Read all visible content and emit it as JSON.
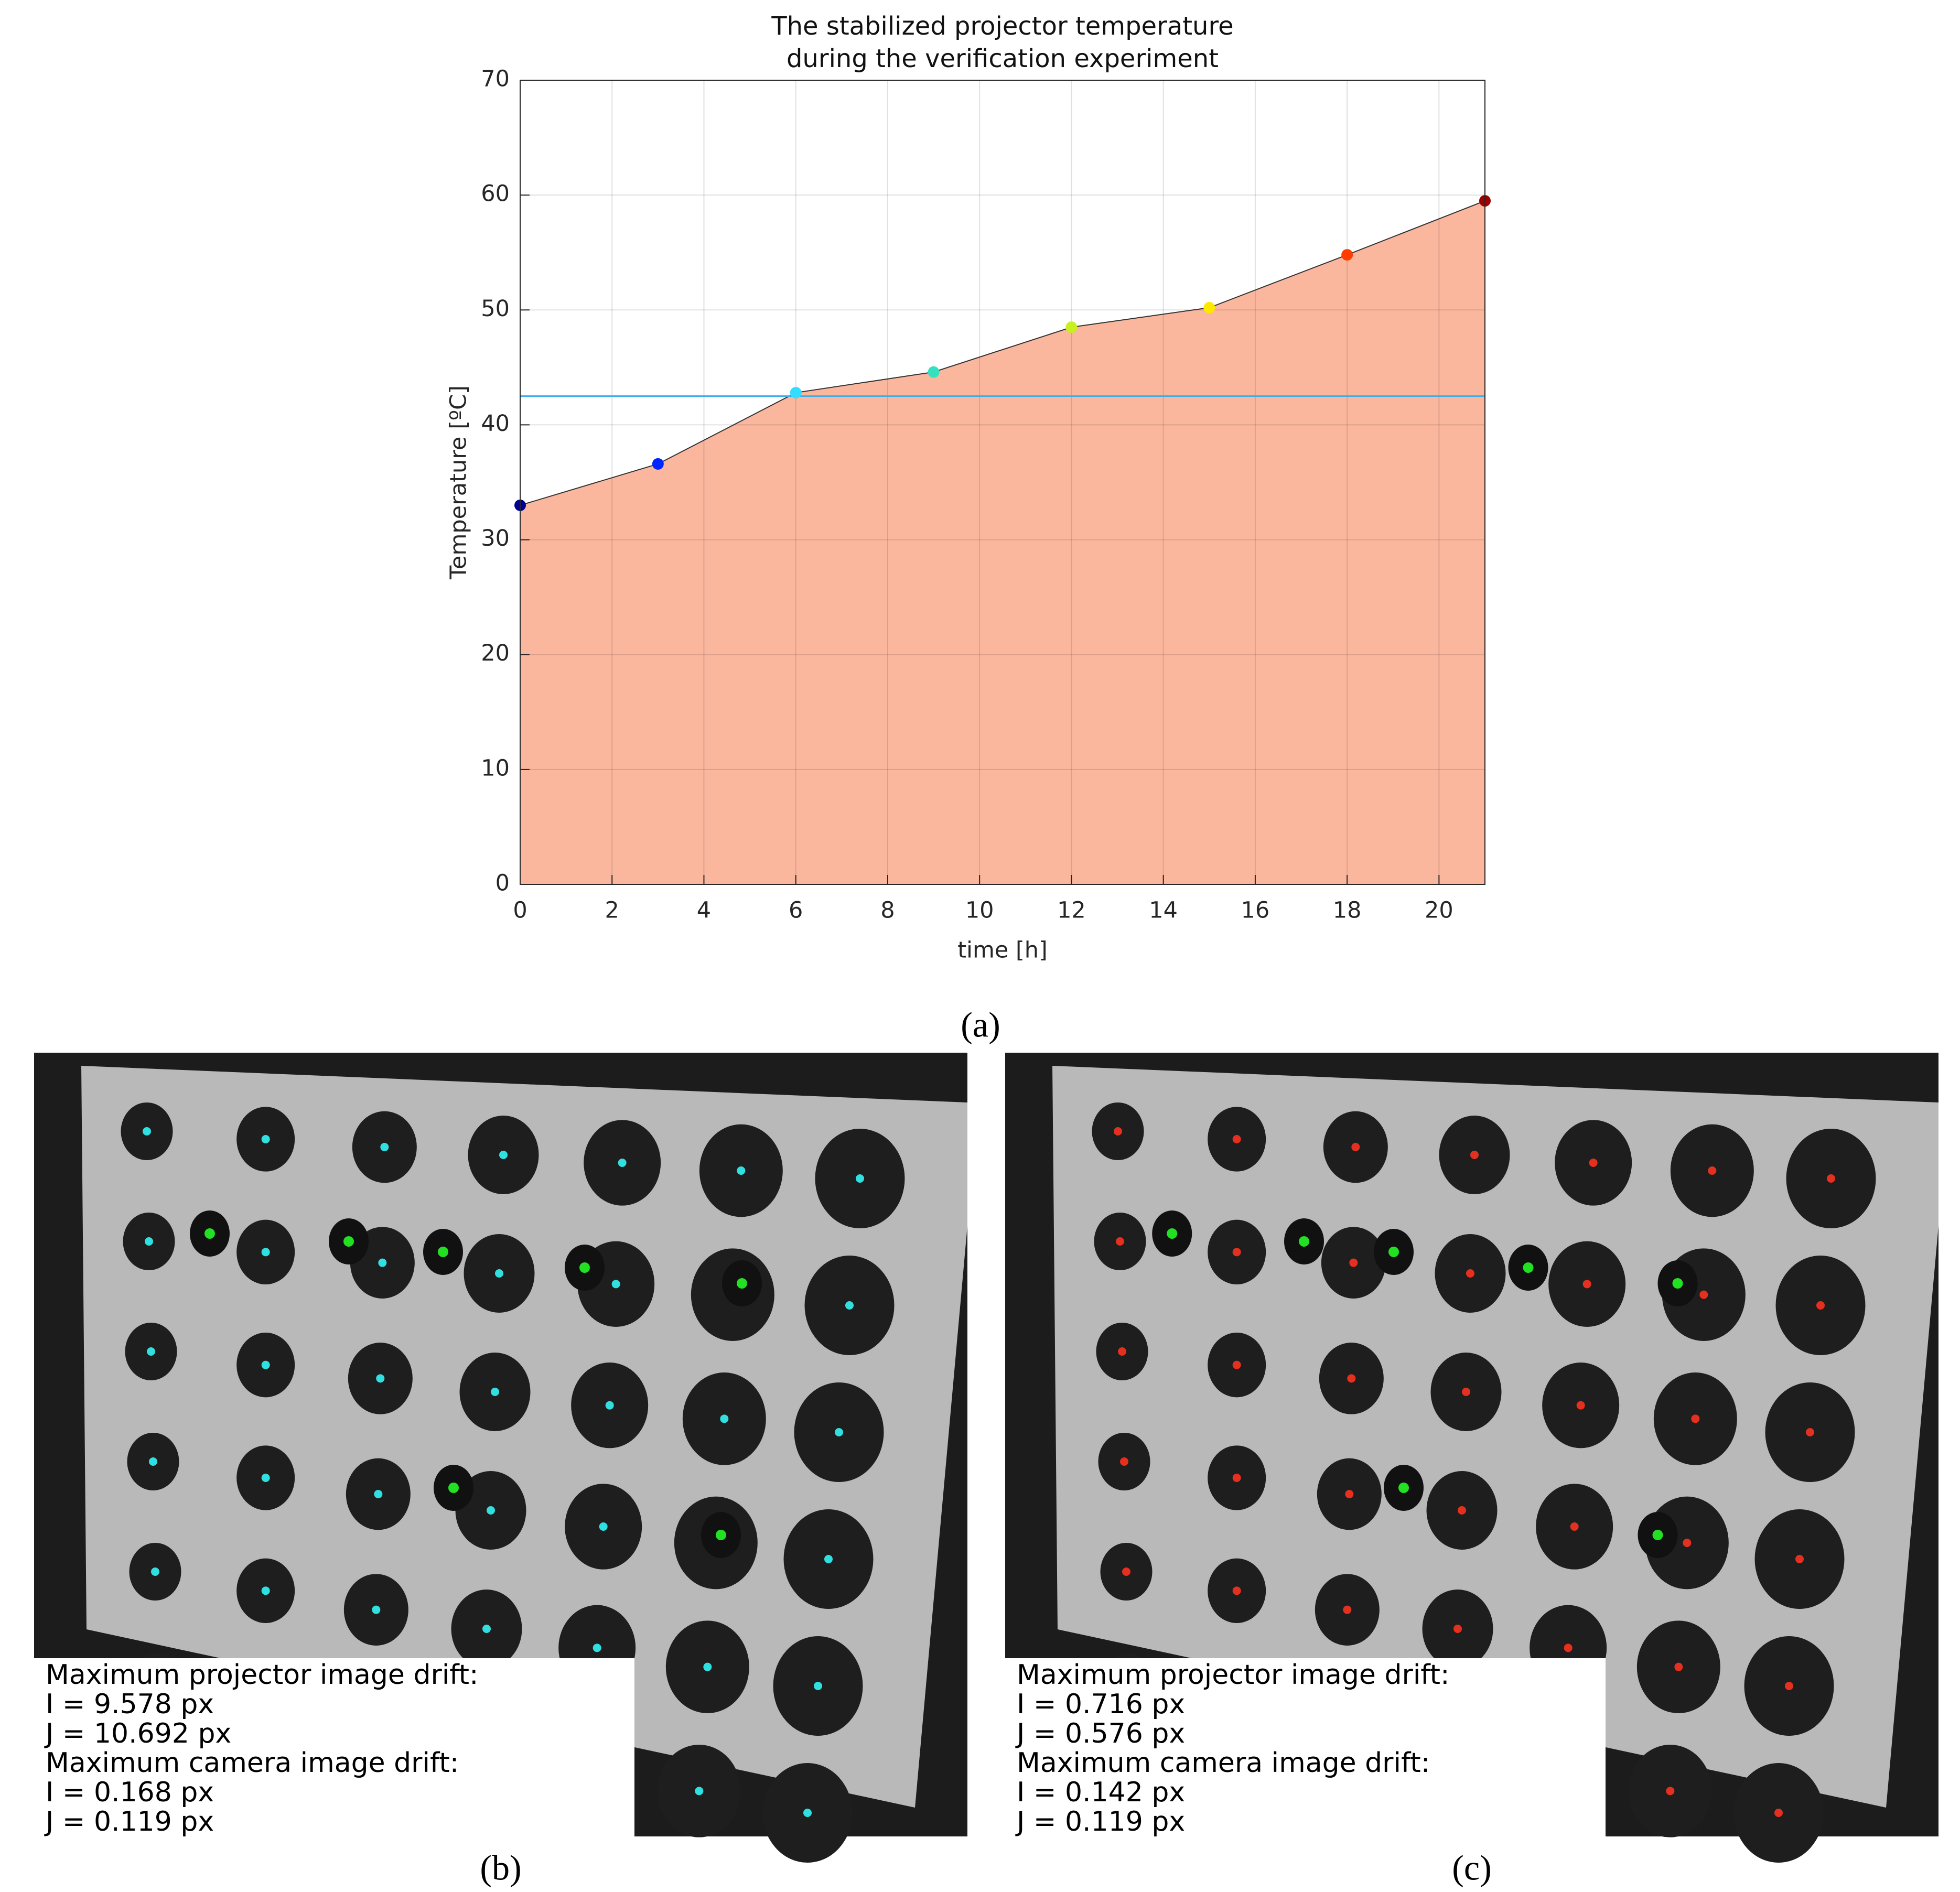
{
  "chart_data": {
    "type": "area",
    "title": [
      "The stabilized projector temperature",
      "during the verification experiment"
    ],
    "x_label": "time [h]",
    "y_label": "Temperature [ºC]",
    "x": [
      0,
      3,
      6,
      9,
      12,
      15,
      18,
      21
    ],
    "series": [
      {
        "color": "#fbb79e",
        "values": [
          33,
          36.6,
          42.8,
          44.6,
          48.5,
          50.2,
          54.8,
          59.5
        ],
        "point_colors": [
          "#00008f",
          "#0026ff",
          "#33ddff",
          "#33e0c0",
          "#c8f020",
          "#ffe800",
          "#ff3d00",
          "#9a0000"
        ]
      }
    ],
    "reference_line": {
      "value": 42.5,
      "color": "#3daee9"
    },
    "xlim": [
      0,
      21
    ],
    "xticks": [
      0,
      2,
      4,
      6,
      8,
      10,
      12,
      14,
      16,
      18,
      20
    ],
    "ylim": [
      0,
      70
    ],
    "yticks": [
      0,
      10,
      20,
      30,
      40,
      50,
      60,
      70
    ],
    "grid": true
  },
  "panel_a_label": "(a)",
  "panels": [
    {
      "label": "(b)",
      "lines": [
        "Maximum projector image drift:",
        "I = 9.578 px",
        "J = 10.692 px",
        "Maximum camera image drift:",
        "I = 0.168 px",
        "J = 0.119 px"
      ]
    },
    {
      "label": "(c)",
      "lines": [
        "Maximum projector image drift:",
        "I = 0.716 px",
        "J = 0.576 px",
        "Maximum camera image drift:",
        "I = 0.142 px",
        "J = 0.119 px"
      ]
    }
  ]
}
